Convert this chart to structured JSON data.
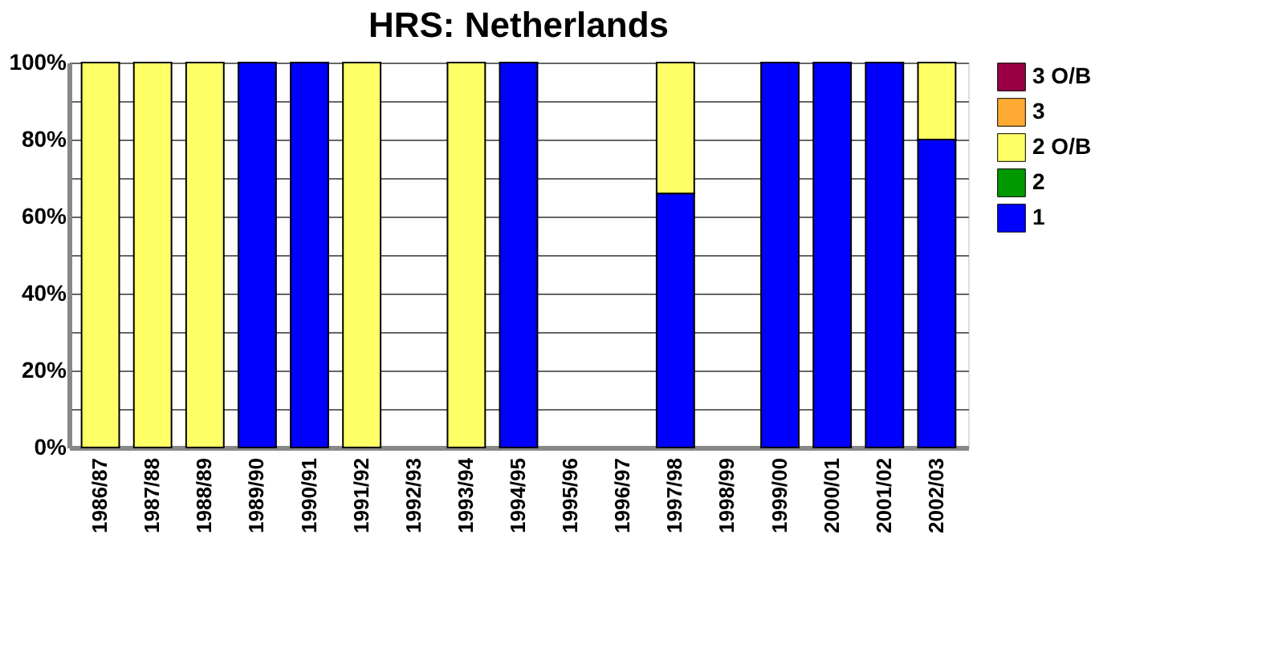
{
  "chart_data": {
    "type": "bar",
    "title": "HRS: Netherlands",
    "stacked": true,
    "categories": [
      "1986/87",
      "1987/88",
      "1988/89",
      "1989/90",
      "1990/91",
      "1991/92",
      "1992/93",
      "1993/94",
      "1994/95",
      "1995/96",
      "1996/97",
      "1997/98",
      "1998/99",
      "1999/00",
      "2000/01",
      "2001/02",
      "2002/03"
    ],
    "series": [
      {
        "name": "1",
        "color": "#0000ff",
        "values": [
          null,
          null,
          null,
          100,
          100,
          null,
          null,
          null,
          100,
          null,
          null,
          66,
          null,
          100,
          100,
          100,
          80
        ]
      },
      {
        "name": "2",
        "color": "#009900",
        "values": [
          null,
          null,
          null,
          null,
          null,
          null,
          null,
          null,
          null,
          null,
          null,
          null,
          null,
          null,
          null,
          null,
          null
        ]
      },
      {
        "name": "2 O/B",
        "color": "#ffff66",
        "values": [
          100,
          100,
          100,
          null,
          null,
          100,
          null,
          100,
          null,
          null,
          null,
          34,
          null,
          null,
          null,
          null,
          20
        ]
      },
      {
        "name": "3",
        "color": "#ffaa33",
        "values": [
          null,
          null,
          null,
          null,
          null,
          null,
          null,
          null,
          null,
          null,
          null,
          null,
          null,
          null,
          null,
          null,
          null
        ]
      },
      {
        "name": "3 O/B",
        "color": "#990044",
        "values": [
          null,
          null,
          null,
          null,
          null,
          null,
          null,
          null,
          null,
          null,
          null,
          null,
          null,
          null,
          null,
          null,
          null
        ]
      }
    ],
    "ylim": [
      0,
      100
    ],
    "yticks": [
      {
        "value": 0,
        "label": "0%"
      },
      {
        "value": 10,
        "label": null
      },
      {
        "value": 20,
        "label": "20%"
      },
      {
        "value": 30,
        "label": null
      },
      {
        "value": 40,
        "label": "40%"
      },
      {
        "value": 50,
        "label": null
      },
      {
        "value": 60,
        "label": "60%"
      },
      {
        "value": 70,
        "label": null
      },
      {
        "value": 80,
        "label": "80%"
      },
      {
        "value": 90,
        "label": null
      },
      {
        "value": 100,
        "label": "100%"
      }
    ],
    "grid": "y",
    "legend": "right"
  }
}
